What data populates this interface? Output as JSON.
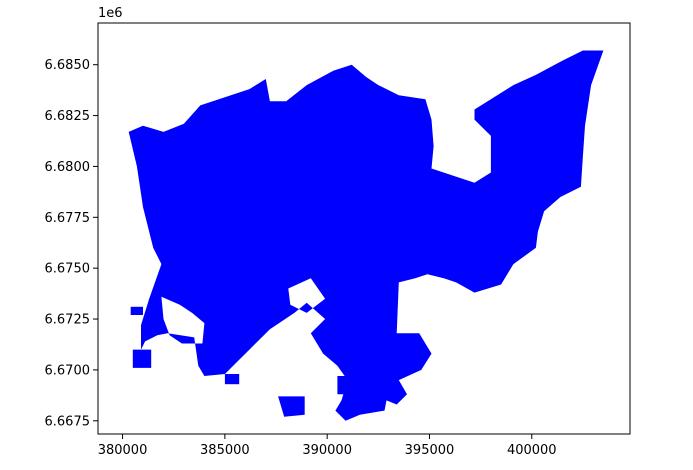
{
  "chart_data": {
    "type": "map",
    "offset_text": "1e6",
    "x_ticks": [
      380000,
      385000,
      390000,
      395000,
      400000
    ],
    "x_tick_labels": [
      "380000",
      "385000",
      "390000",
      "395000",
      "400000"
    ],
    "y_ticks": [
      6.6675,
      6.67,
      6.6725,
      6.675,
      6.6775,
      6.68,
      6.6825,
      6.685
    ],
    "y_tick_labels": [
      "6.6675",
      "6.6700",
      "6.6725",
      "6.6750",
      "6.6775",
      "6.6800",
      "6.6825",
      "6.6850"
    ],
    "xlim": [
      378800,
      404800
    ],
    "ylim": [
      6.66685,
      6.68705
    ],
    "grid": false,
    "fill_color": "#0000ff",
    "region_outline": [
      [
        380300,
        6.6817
      ],
      [
        381000,
        6.682
      ],
      [
        382000,
        6.6817
      ],
      [
        383000,
        6.6821
      ],
      [
        383800,
        6.683
      ],
      [
        385000,
        6.6834
      ],
      [
        386200,
        6.6838
      ],
      [
        387000,
        6.6843
      ],
      [
        387200,
        6.6832
      ],
      [
        388000,
        6.6832
      ],
      [
        389000,
        6.684
      ],
      [
        390300,
        6.6847
      ],
      [
        391200,
        6.685
      ],
      [
        391900,
        6.6844
      ],
      [
        392500,
        6.684
      ],
      [
        393500,
        6.6835
      ],
      [
        394800,
        6.6833
      ],
      [
        395100,
        6.6823
      ],
      [
        395200,
        6.681
      ],
      [
        395100,
        6.6799
      ],
      [
        397200,
        6.6792
      ],
      [
        398000,
        6.6797
      ],
      [
        398000,
        6.6815
      ],
      [
        397200,
        6.6823
      ],
      [
        397200,
        6.6828
      ],
      [
        399100,
        6.684
      ],
      [
        400200,
        6.6845
      ],
      [
        401500,
        6.6852
      ],
      [
        402500,
        6.6857
      ],
      [
        403500,
        6.6857
      ],
      [
        402900,
        6.684
      ],
      [
        402600,
        6.682
      ],
      [
        402500,
        6.6805
      ],
      [
        402400,
        6.679
      ],
      [
        401400,
        6.6785
      ],
      [
        400600,
        6.6778
      ],
      [
        400300,
        6.6768
      ],
      [
        400200,
        6.676
      ],
      [
        399100,
        6.6752
      ],
      [
        398500,
        6.6742
      ],
      [
        397200,
        6.6738
      ],
      [
        396300,
        6.6743
      ],
      [
        395700,
        6.6745
      ],
      [
        394900,
        6.6747
      ],
      [
        394300,
        6.6745
      ],
      [
        393500,
        6.6743
      ],
      [
        393400,
        6.6718
      ],
      [
        394500,
        6.6718
      ],
      [
        395100,
        6.6708
      ],
      [
        394600,
        6.67
      ],
      [
        393500,
        6.6695
      ],
      [
        393900,
        6.6688
      ],
      [
        393400,
        6.6683
      ],
      [
        392900,
        6.6685
      ],
      [
        392800,
        6.668
      ],
      [
        391600,
        6.6678
      ],
      [
        390900,
        6.6675
      ],
      [
        390400,
        6.668
      ],
      [
        390700,
        6.6685
      ],
      [
        391000,
        6.6695
      ],
      [
        390500,
        6.6702
      ],
      [
        389800,
        6.6708
      ],
      [
        389200,
        6.6718
      ],
      [
        389900,
        6.6725
      ],
      [
        389000,
        6.6733
      ],
      [
        388400,
        6.6728
      ],
      [
        387200,
        6.672
      ],
      [
        386200,
        6.671
      ],
      [
        385000,
        6.6698
      ],
      [
        384000,
        6.6697
      ],
      [
        383700,
        6.6702
      ],
      [
        383500,
        6.6716
      ],
      [
        382200,
        6.6718
      ],
      [
        381700,
        6.6717
      ],
      [
        381100,
        6.6714
      ],
      [
        380900,
        6.671
      ],
      [
        380900,
        6.6722
      ],
      [
        381300,
        6.6735
      ],
      [
        381900,
        6.6752
      ],
      [
        381500,
        6.676
      ],
      [
        381000,
        6.678
      ],
      [
        380700,
        6.68
      ],
      [
        380300,
        6.6817
      ]
    ],
    "holes": [
      [
        [
          381900,
          6.6736
        ],
        [
          382800,
          6.6732
        ],
        [
          383400,
          6.6728
        ],
        [
          384000,
          6.6723
        ],
        [
          383900,
          6.6713
        ],
        [
          382900,
          6.6713
        ],
        [
          382300,
          6.6717
        ],
        [
          382000,
          6.6725
        ],
        [
          381900,
          6.6736
        ]
      ],
      [
        [
          388100,
          6.674
        ],
        [
          389200,
          6.6745
        ],
        [
          389900,
          6.6735
        ],
        [
          389000,
          6.6728
        ],
        [
          388200,
          6.6732
        ],
        [
          388100,
          6.674
        ]
      ]
    ],
    "islands": [
      [
        [
          385000,
          6.6698
        ],
        [
          385700,
          6.6698
        ],
        [
          385700,
          6.6693
        ],
        [
          385000,
          6.6693
        ],
        [
          385000,
          6.6698
        ]
      ],
      [
        [
          387600,
          6.6687
        ],
        [
          388900,
          6.6687
        ],
        [
          388900,
          6.6678
        ],
        [
          387900,
          6.6677
        ],
        [
          387600,
          6.6687
        ]
      ],
      [
        [
          390500,
          6.6697
        ],
        [
          392400,
          6.6697
        ],
        [
          392400,
          6.6688
        ],
        [
          390500,
          6.6688
        ],
        [
          390500,
          6.6697
        ]
      ],
      [
        [
          380400,
          6.6731
        ],
        [
          381000,
          6.6731
        ],
        [
          381000,
          6.6727
        ],
        [
          380400,
          6.6727
        ],
        [
          380400,
          6.6731
        ]
      ],
      [
        [
          380500,
          6.671
        ],
        [
          381400,
          6.671
        ],
        [
          381400,
          6.6701
        ],
        [
          380500,
          6.6701
        ],
        [
          380500,
          6.671
        ]
      ]
    ]
  }
}
